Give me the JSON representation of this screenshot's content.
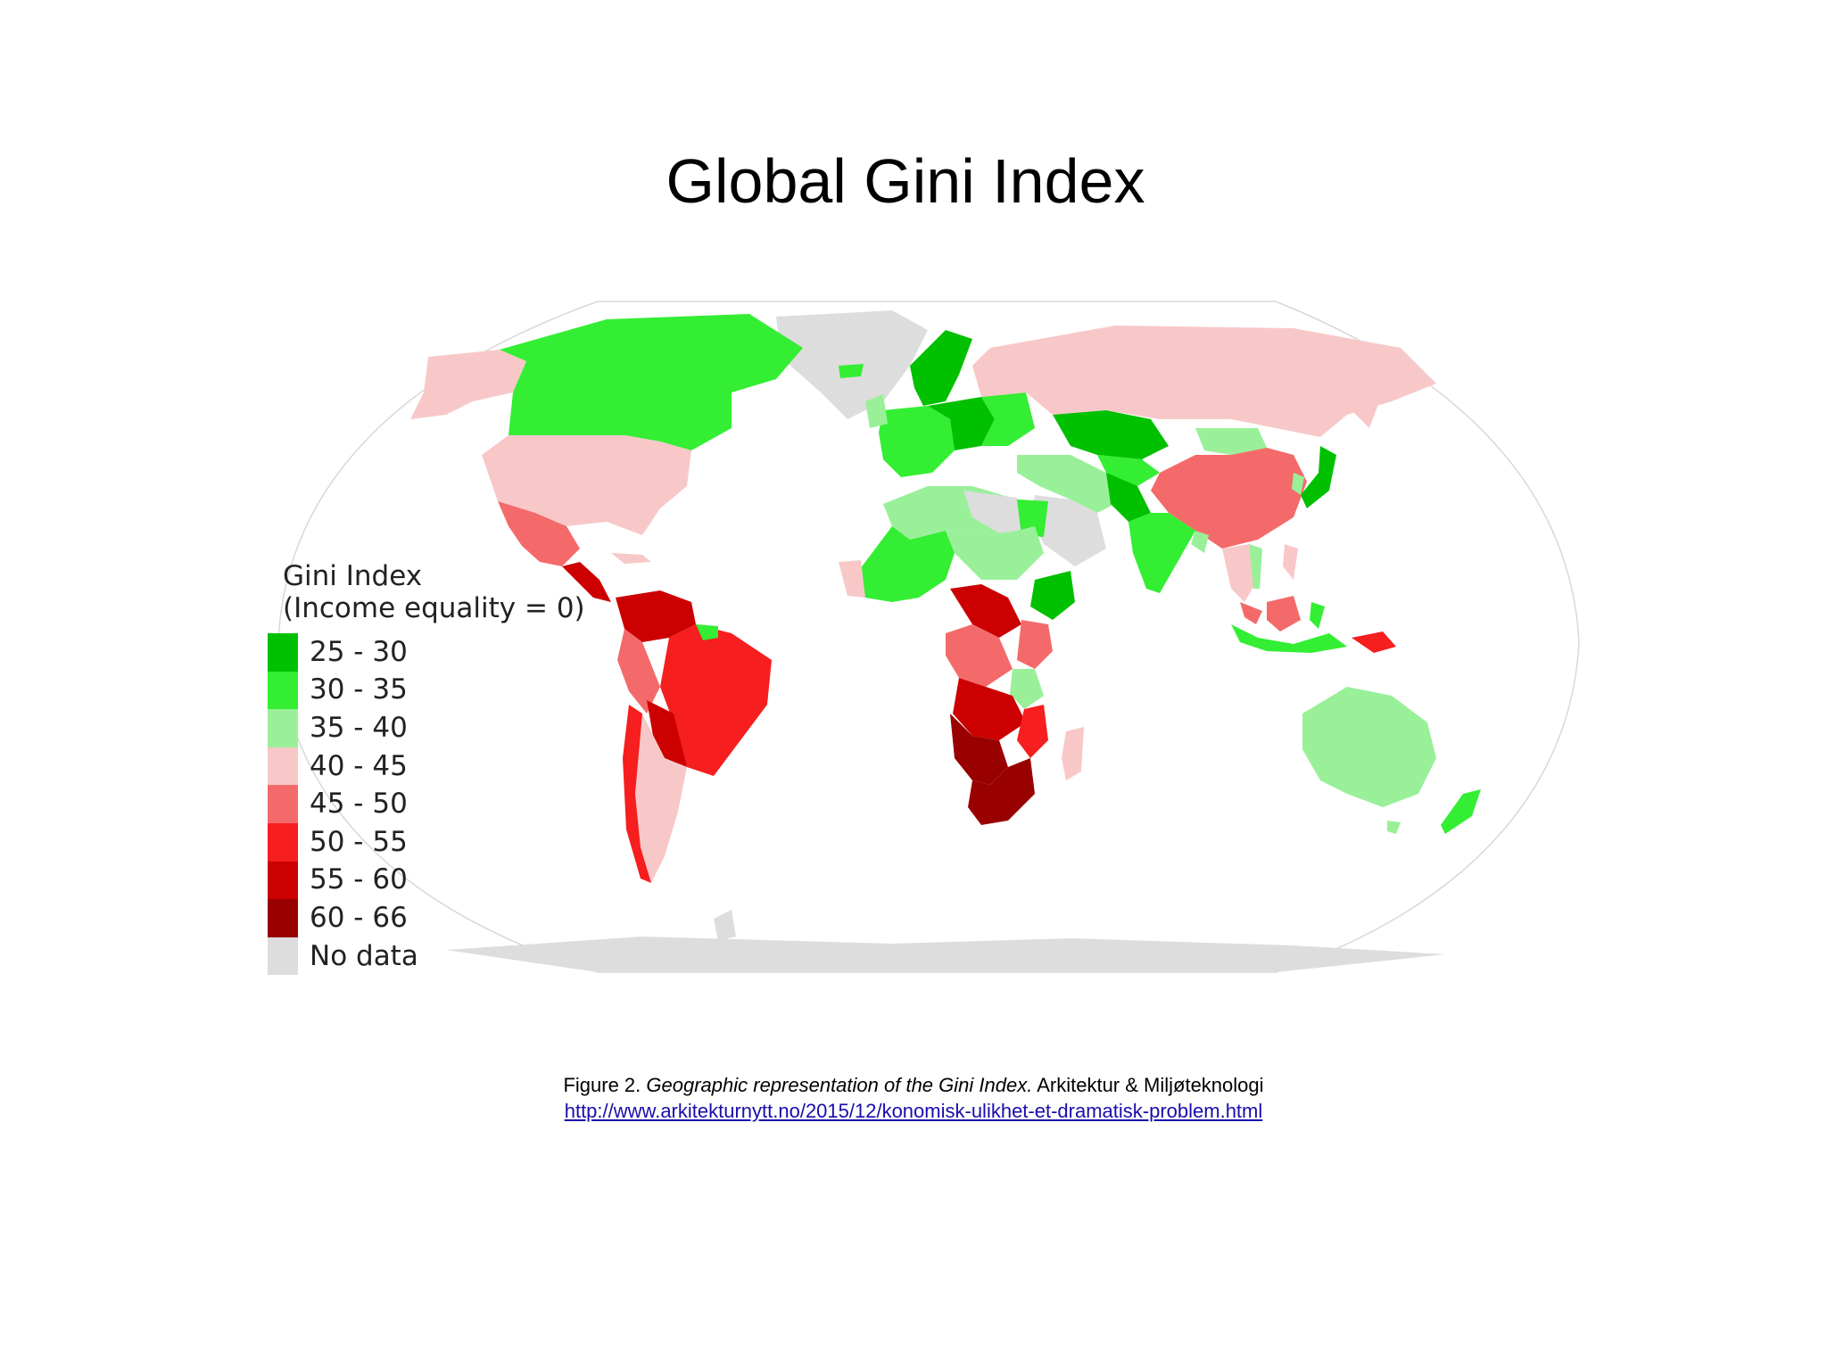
{
  "slide": {
    "title": "Global Gini Index"
  },
  "legend": {
    "title_line1": "Gini Index",
    "title_line2": "(Income equality = 0)",
    "items": [
      {
        "label": "25 - 30",
        "color": "#00c000"
      },
      {
        "label": "30 - 35",
        "color": "#33ee33"
      },
      {
        "label": "35 - 40",
        "color": "#99f099"
      },
      {
        "label": "40 - 45",
        "color": "#f8c8c8"
      },
      {
        "label": "45 - 50",
        "color": "#f46a6a"
      },
      {
        "label": "50 - 55",
        "color": "#f61e1e"
      },
      {
        "label": "55 - 60",
        "color": "#cc0000"
      },
      {
        "label": "60 - 66",
        "color": "#990000"
      },
      {
        "label": "No data",
        "color": "#dddddd"
      }
    ]
  },
  "map": {
    "ocean_color": "#ffffff",
    "outline_color": "#cccccc"
  },
  "caption": {
    "prefix": "Figure 2. ",
    "italic": "Geographic representation of the Gini Index.",
    "suffix": " Arkitektur  & Miljøteknologi",
    "link": "http://www.arkitekturnytt.no/2015/12/konomisk-ulikhet-et-dramatisk-problem.html"
  }
}
